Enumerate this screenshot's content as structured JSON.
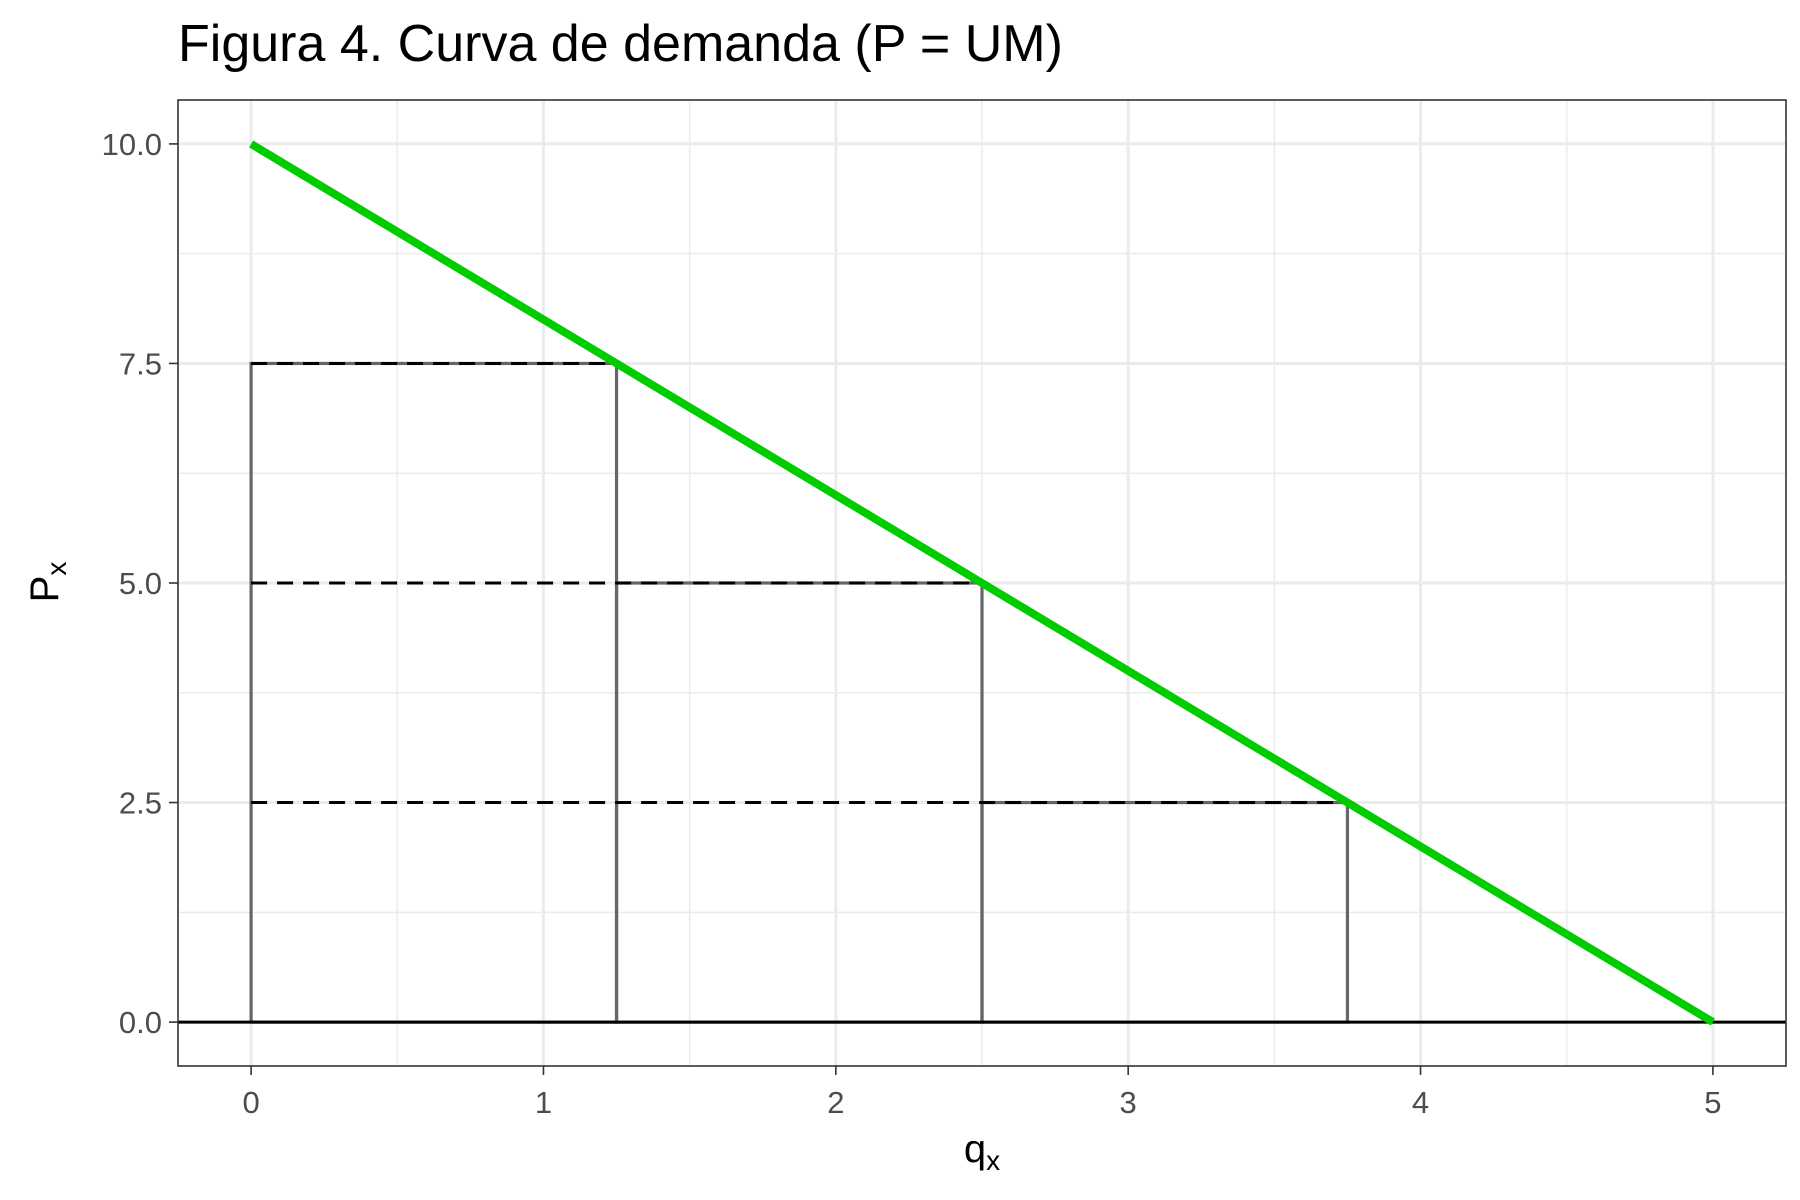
{
  "chart_data": {
    "type": "line",
    "title": "Figura 4. Curva de demanda (P = UM)",
    "xlabel": {
      "main": "q",
      "sub": "x"
    },
    "ylabel": {
      "main": "P",
      "sub": "x"
    },
    "xlim": [
      -0.25,
      5.25
    ],
    "ylim": [
      -0.5,
      10.5
    ],
    "x_ticks": [
      0,
      1,
      2,
      3,
      4,
      5
    ],
    "x_tick_labels": [
      "0",
      "1",
      "2",
      "3",
      "4",
      "5"
    ],
    "y_ticks": [
      0,
      2.5,
      5,
      7.5,
      10
    ],
    "y_tick_labels": [
      "0.0",
      "2.5",
      "5.0",
      "7.5",
      "10.0"
    ],
    "grid": true,
    "demand_curve": {
      "color": "#00cc00",
      "points": [
        [
          0,
          10
        ],
        [
          5,
          0
        ]
      ]
    },
    "rectangles": [
      {
        "x0": 0,
        "x1": 1.25,
        "y": 7.5
      },
      {
        "x0": 1.25,
        "x1": 2.5,
        "y": 5
      },
      {
        "x0": 2.5,
        "x1": 3.75,
        "y": 2.5
      }
    ],
    "dashed_price_lines": [
      {
        "x0": 0,
        "x1": 1.25,
        "y": 7.5
      },
      {
        "x0": 0,
        "x1": 2.5,
        "y": 5
      },
      {
        "x0": 0,
        "x1": 3.75,
        "y": 2.5
      }
    ],
    "baseline": {
      "y": 0
    }
  }
}
